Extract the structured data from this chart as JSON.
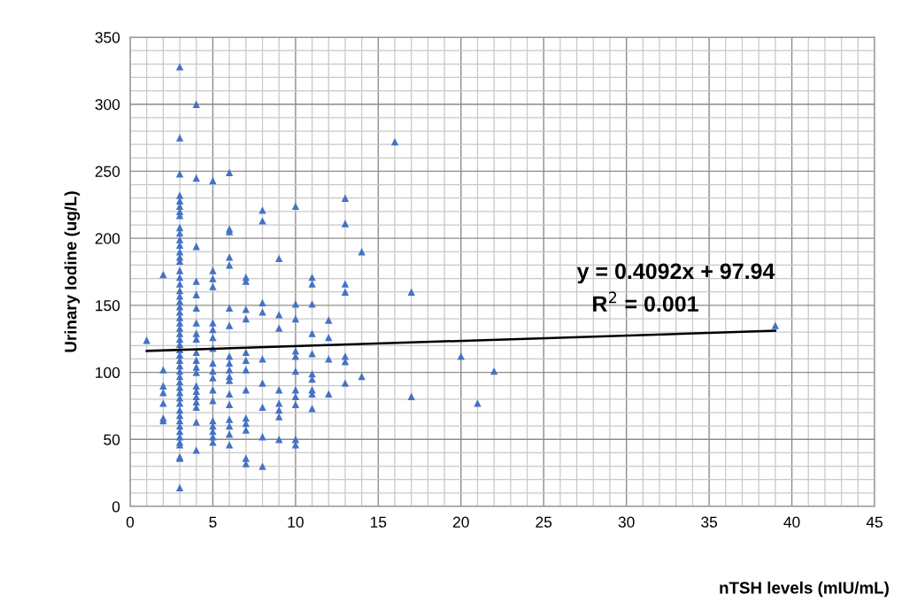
{
  "chart_data": {
    "type": "scatter",
    "xlabel": "nTSH levels (mIU/mL)",
    "ylabel": "Urinary Iodine (ug/L)",
    "xlim": [
      0,
      45
    ],
    "xticks": [
      0,
      5,
      10,
      15,
      20,
      25,
      30,
      35,
      40,
      45
    ],
    "ylim": [
      0,
      350
    ],
    "yticks": [
      0,
      50,
      100,
      150,
      200,
      250,
      300,
      350
    ],
    "grid": true,
    "marker": "triangle",
    "annotations": [
      "y = 0.4092x + 97.94",
      "R$^{2}$ = 0.001"
    ],
    "series": [
      {
        "color": "#4472c4",
        "x": [
          1,
          2,
          2,
          2,
          2,
          2,
          2,
          2,
          3,
          3,
          3,
          3,
          3,
          3,
          3,
          3,
          3,
          3,
          3,
          3,
          3,
          3,
          3,
          3,
          3,
          3,
          3,
          3,
          3,
          3,
          3,
          3,
          3,
          3,
          3,
          3,
          3,
          3,
          3,
          3,
          3,
          3,
          3,
          3,
          3,
          3,
          3,
          3,
          3,
          3,
          3,
          3,
          3,
          3,
          3,
          3,
          3,
          3,
          3,
          4,
          4,
          4,
          4,
          4,
          4,
          4,
          4,
          4,
          4,
          4,
          4,
          4,
          4,
          4,
          4,
          4,
          4,
          4,
          4,
          5,
          5,
          5,
          5,
          5,
          5,
          5,
          5,
          5,
          5,
          5,
          5,
          5,
          5,
          5,
          5,
          5,
          5,
          6,
          6,
          6,
          6,
          6,
          6,
          6,
          6,
          6,
          6,
          6,
          6,
          6,
          6,
          6,
          6,
          6,
          6,
          7,
          7,
          7,
          7,
          7,
          7,
          7,
          7,
          7,
          7,
          7,
          7,
          7,
          8,
          8,
          8,
          8,
          8,
          8,
          8,
          8,
          8,
          9,
          9,
          9,
          9,
          9,
          9,
          9,
          9,
          10,
          10,
          10,
          10,
          10,
          10,
          10,
          10,
          10,
          10,
          10,
          11,
          11,
          11,
          11,
          11,
          11,
          11,
          11,
          11,
          11,
          12,
          12,
          12,
          12,
          13,
          13,
          13,
          13,
          13,
          13,
          13,
          14,
          14,
          16,
          17,
          17,
          20,
          21,
          22,
          39
        ],
        "values": [
          124,
          173,
          102,
          90,
          85,
          77,
          66,
          64,
          328,
          275,
          248,
          232,
          228,
          224,
          220,
          217,
          208,
          204,
          199,
          195,
          190,
          186,
          183,
          176,
          171,
          166,
          161,
          157,
          153,
          149,
          145,
          141,
          137,
          133,
          129,
          125,
          121,
          117,
          113,
          109,
          105,
          101,
          97,
          93,
          89,
          85,
          81,
          77,
          72,
          68,
          64,
          60,
          56,
          52,
          48,
          46,
          37,
          36,
          14,
          300,
          245,
          194,
          168,
          158,
          148,
          137,
          129,
          125,
          115,
          109,
          104,
          100,
          90,
          86,
          82,
          78,
          74,
          63,
          42,
          243,
          176,
          170,
          164,
          137,
          132,
          126,
          118,
          107,
          101,
          96,
          87,
          79,
          64,
          60,
          56,
          52,
          48,
          249,
          207,
          205,
          186,
          180,
          148,
          135,
          112,
          107,
          102,
          97,
          94,
          84,
          76,
          65,
          60,
          54,
          46,
          171,
          168,
          147,
          140,
          115,
          109,
          102,
          87,
          66,
          62,
          57,
          36,
          32,
          221,
          213,
          152,
          145,
          110,
          92,
          74,
          52,
          30,
          185,
          143,
          133,
          87,
          77,
          72,
          67,
          50,
          224,
          151,
          140,
          116,
          112,
          101,
          87,
          82,
          76,
          50,
          46,
          171,
          166,
          151,
          129,
          114,
          99,
          95,
          87,
          84,
          73,
          139,
          126,
          110,
          84,
          230,
          211,
          166,
          160,
          112,
          108,
          92,
          190,
          97,
          272,
          160,
          82,
          112,
          77,
          101,
          135
        ]
      },
      {
        "type": "line",
        "color": "#000000",
        "x": [
          1,
          39
        ],
        "values": [
          116,
          131
        ],
        "marker": "none"
      }
    ]
  }
}
